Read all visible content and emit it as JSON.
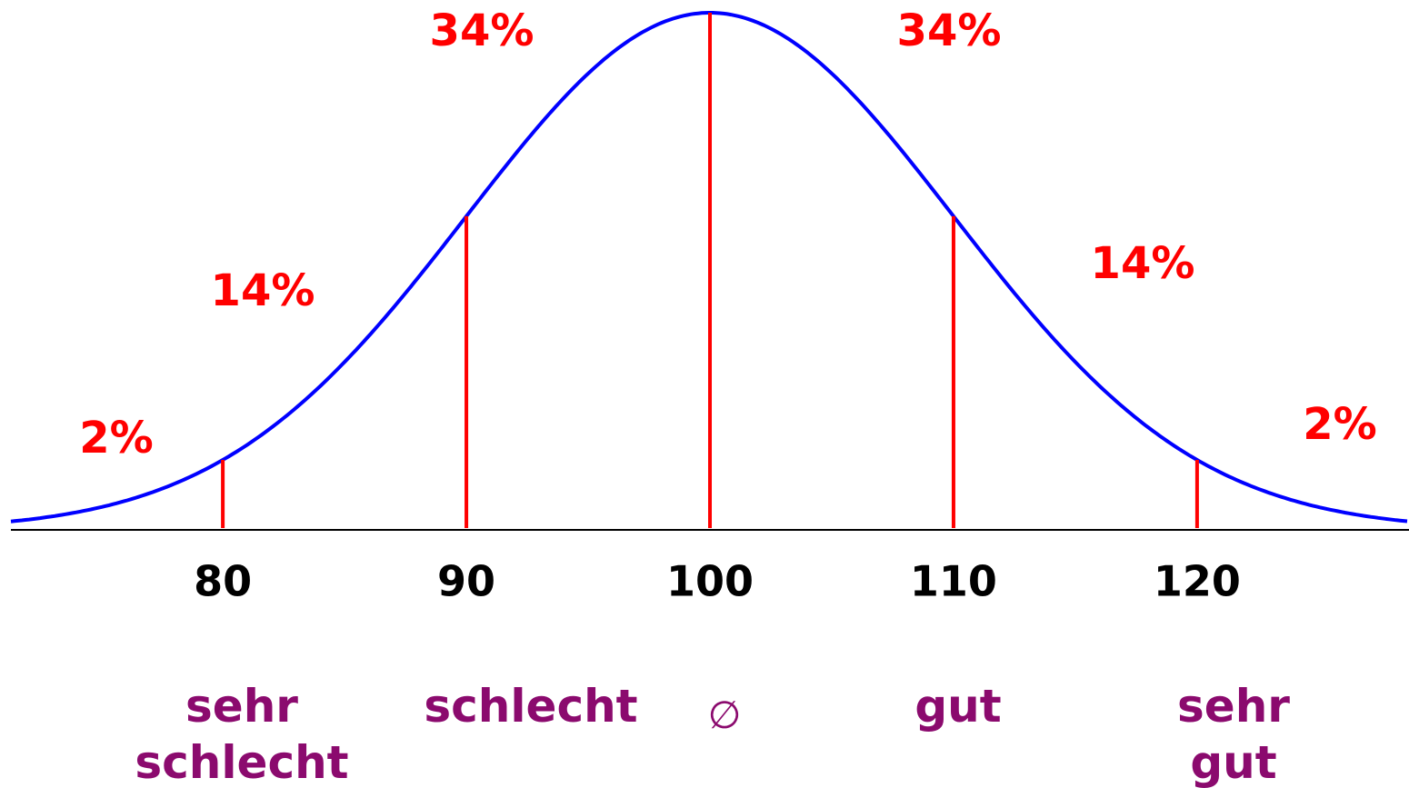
{
  "chart_data": {
    "type": "normal",
    "xlim": [
      71.3,
      128.7
    ],
    "xticks": [
      80,
      90,
      100,
      110,
      120
    ],
    "curve_color": "#0000ff",
    "line_color": "#ff0000",
    "region_labels": [
      "2%",
      "14%",
      "34%",
      "34%",
      "14%",
      "2%"
    ],
    "categories": [
      "sehr schlecht",
      "schlecht",
      "∅",
      "gut",
      "sehr gut"
    ]
  }
}
